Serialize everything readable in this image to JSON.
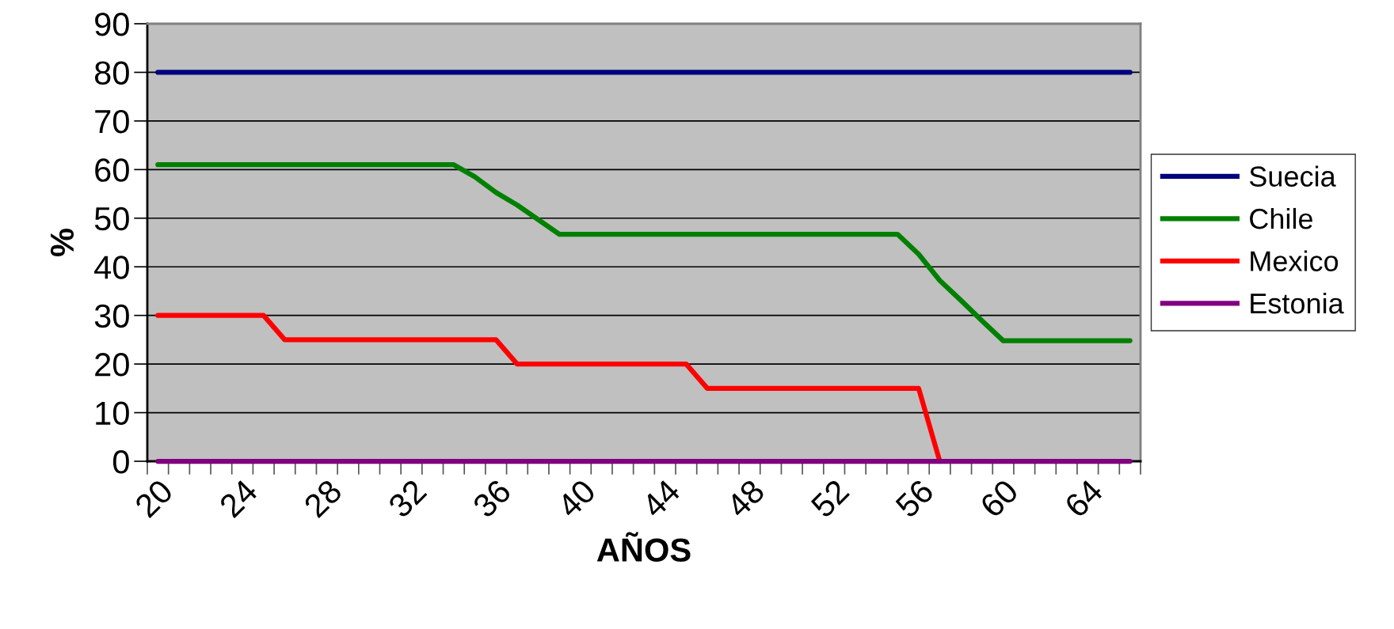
{
  "chart_data": {
    "type": "line",
    "xlabel": "AÑOS",
    "ylabel": "%",
    "categories": [
      "20",
      null,
      null,
      null,
      "24",
      null,
      null,
      null,
      "28",
      null,
      null,
      null,
      "32",
      null,
      null,
      null,
      "36",
      null,
      null,
      null,
      "40",
      null,
      null,
      null,
      "44",
      null,
      null,
      null,
      "48",
      null,
      null,
      null,
      "52",
      null,
      null,
      null,
      "56",
      null,
      null,
      null,
      "60",
      null,
      null,
      null,
      "64",
      null,
      null
    ],
    "series": [
      {
        "name": "Suecia",
        "color": "#000080",
        "values": [
          80,
          80,
          80,
          80,
          80,
          80,
          80,
          80,
          80,
          80,
          80,
          80,
          80,
          80,
          80,
          80,
          80,
          80,
          80,
          80,
          80,
          80,
          80,
          80,
          80,
          80,
          80,
          80,
          80,
          80,
          80,
          80,
          80,
          80,
          80,
          80,
          80,
          80,
          80,
          80,
          80,
          80,
          80,
          80,
          80,
          80,
          80
        ]
      },
      {
        "name": "Chile",
        "color": "#008000",
        "values": [
          61,
          61,
          61,
          61,
          61,
          61,
          61,
          61,
          61,
          61,
          61,
          61,
          61,
          61,
          61,
          58.5,
          55.3,
          52.7,
          49.7,
          46.7,
          46.7,
          46.7,
          46.7,
          46.7,
          46.7,
          46.7,
          46.7,
          46.7,
          46.7,
          46.7,
          46.7,
          46.7,
          46.7,
          46.7,
          46.7,
          46.7,
          42.6,
          37.2,
          33.1,
          28.9,
          24.8,
          24.8,
          24.8,
          24.8,
          24.8,
          24.8,
          24.8
        ]
      },
      {
        "name": "Mexico",
        "color": "#ff0000",
        "values": [
          30,
          30,
          30,
          30,
          30,
          30,
          25,
          25,
          25,
          25,
          25,
          25,
          25,
          25,
          25,
          25,
          25,
          20,
          20,
          20,
          20,
          20,
          20,
          20,
          20,
          20,
          15,
          15,
          15,
          15,
          15,
          15,
          15,
          15,
          15,
          15,
          15,
          0,
          null,
          null,
          null,
          null,
          null,
          null,
          null,
          null,
          null
        ]
      },
      {
        "name": "Estonia",
        "color": "#800080",
        "values": [
          0,
          0,
          0,
          0,
          0,
          0,
          0,
          0,
          0,
          0,
          0,
          0,
          0,
          0,
          0,
          0,
          0,
          0,
          0,
          0,
          0,
          0,
          0,
          0,
          0,
          0,
          0,
          0,
          0,
          0,
          0,
          0,
          0,
          0,
          0,
          0,
          0,
          0,
          0,
          0,
          0,
          0,
          0,
          0,
          0,
          0,
          0
        ]
      }
    ],
    "ylim": [
      0,
      90
    ],
    "yticks": [
      0,
      10,
      20,
      30,
      40,
      50,
      60,
      70,
      80,
      90
    ],
    "grid": "y",
    "legend": "right",
    "marker": "none",
    "line_style": "solid"
  }
}
